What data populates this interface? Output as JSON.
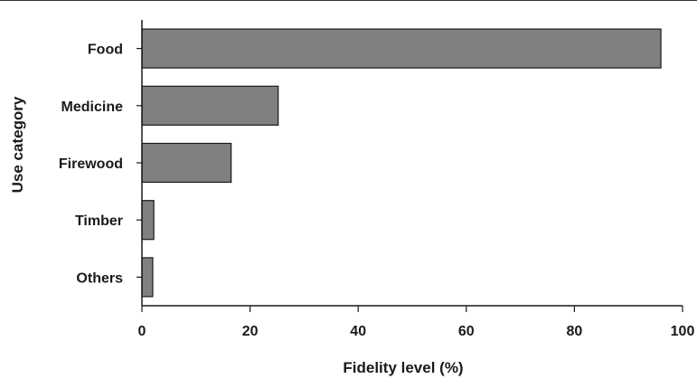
{
  "chart_data": {
    "type": "bar",
    "orientation": "horizontal",
    "categories": [
      "Food",
      "Medicine",
      "Firewood",
      "Timber",
      "Others"
    ],
    "values": [
      96,
      25.2,
      16.5,
      2.2,
      2.0
    ],
    "xlabel": "Fidelity level (%)",
    "ylabel": "Use category",
    "xlim": [
      0,
      100
    ],
    "x_ticks": [
      "0",
      "20",
      "40",
      "60",
      "80",
      "100"
    ],
    "grid": false,
    "bar_color": "#808080",
    "bar_edge_color": "#1a1a1a"
  }
}
